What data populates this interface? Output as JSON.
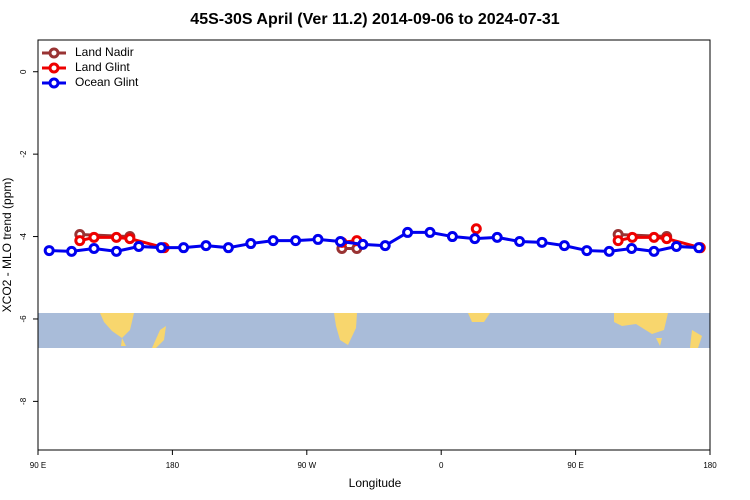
{
  "chart_data": {
    "type": "line",
    "title": "45S-30S April (Ver 11.2)   2014-09-06 to 2024-07-31",
    "xlabel": "Longitude",
    "ylabel": "XCO2 - MLO trend (ppm)",
    "xlim": [
      90,
      540
    ],
    "ylim": [
      -9.18,
      0.77
    ],
    "xticks": [
      {
        "value": 90,
        "label": "90 E"
      },
      {
        "value": 180,
        "label": "180"
      },
      {
        "value": 270,
        "label": "90 W"
      },
      {
        "value": 360,
        "label": "0"
      },
      {
        "value": 450,
        "label": "90 E"
      },
      {
        "value": 540,
        "label": "180"
      }
    ],
    "yticks": [
      0,
      -2,
      -4,
      -6,
      -8
    ],
    "legend": "top-left",
    "series": [
      {
        "name": "Land Nadir",
        "color": "#993333",
        "x": [
          118,
          151.5,
          null,
          293.5,
          303.5,
          null,
          478.5,
          511
        ],
        "values": [
          -3.95,
          -4.0,
          null,
          -4.29,
          -4.29,
          null,
          -3.95,
          -4.0
        ]
      },
      {
        "name": "Land Glint",
        "color": "#ee0000",
        "x": [
          118,
          127.5,
          142.5,
          151.5,
          174.5,
          null,
          293.5,
          303.5,
          null,
          383.5,
          null,
          478.5,
          488,
          502.5,
          511,
          533.5
        ],
        "values": [
          -4.1,
          -4.02,
          -4.02,
          -4.05,
          -4.27,
          null,
          -4.14,
          -4.1,
          null,
          -3.81,
          null,
          -4.1,
          -4.02,
          -4.02,
          -4.05,
          -4.27
        ]
      },
      {
        "name": "Ocean Glint",
        "color": "#0000ee",
        "x": [
          97.5,
          112.5,
          127.5,
          142.5,
          157.5,
          172.5,
          187.5,
          202.5,
          217.5,
          232.5,
          247.5,
          262.5,
          277.5,
          292.5,
          307.5,
          322.5,
          337.5,
          352.5,
          367.5,
          382.5,
          397.5,
          412.5,
          427.5,
          442.5,
          457.5,
          472.5,
          487.5,
          502.5,
          517.5,
          532.5
        ],
        "values": [
          -4.34,
          -4.36,
          -4.29,
          -4.36,
          -4.24,
          -4.27,
          -4.27,
          -4.22,
          -4.27,
          -4.17,
          -4.1,
          -4.1,
          -4.07,
          -4.12,
          -4.19,
          -4.22,
          -3.9,
          -3.9,
          -4.0,
          -4.05,
          -4.02,
          -4.12,
          -4.14,
          -4.22,
          -4.34,
          -4.36,
          -4.29,
          -4.36,
          -4.24,
          -4.27
        ]
      }
    ]
  }
}
